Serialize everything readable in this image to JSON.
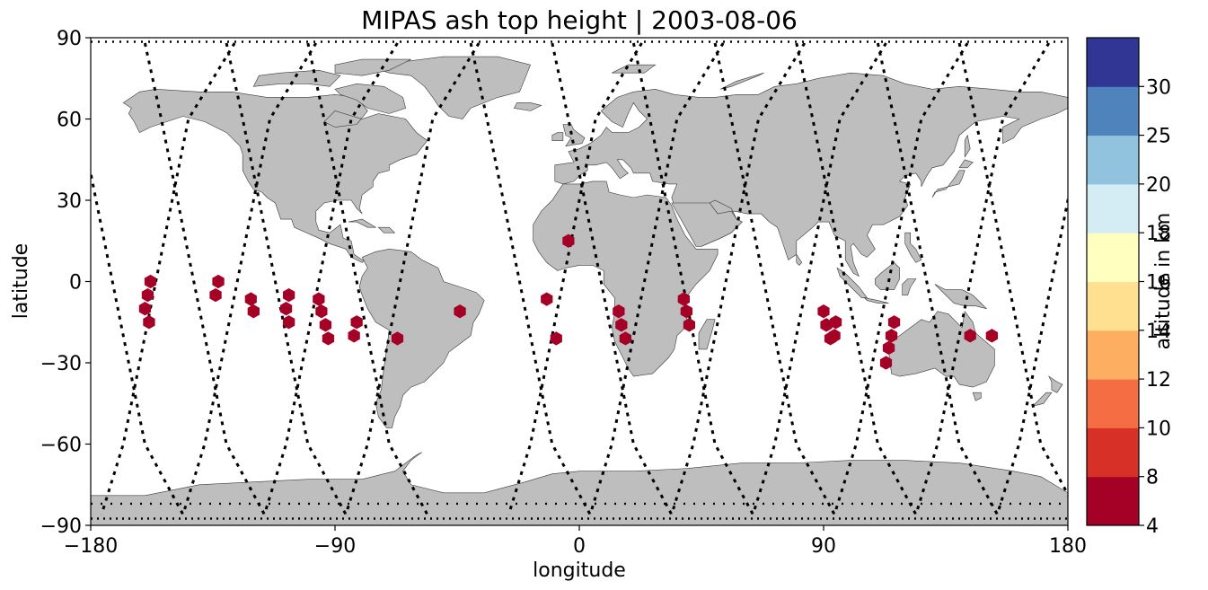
{
  "chart_data": {
    "type": "scatter",
    "title": "MIPAS ash top height | 2003-08-06",
    "xlabel": "longitude",
    "ylabel": "latitude",
    "xlim": [
      -180,
      180
    ],
    "ylim": [
      -90,
      90
    ],
    "x_ticks": [
      -180,
      -90,
      0,
      90,
      180
    ],
    "y_ticks": [
      -90,
      -60,
      -30,
      0,
      30,
      60,
      90
    ],
    "x_tick_labels": [
      "−180",
      "−90",
      "0",
      "90",
      "180"
    ],
    "y_tick_labels": [
      "−90",
      "−60",
      "−30",
      "0",
      "30",
      "60",
      "90"
    ],
    "background": "world map with grey land masses and dotted satellite ground tracks",
    "land_color": "#bebebe",
    "track_color": "#000000",
    "marker": "hexagon",
    "marker_color": "#a50026",
    "points": [
      {
        "lon": -158,
        "lat": 0,
        "alt": 6
      },
      {
        "lon": -159,
        "lat": -5,
        "alt": 6
      },
      {
        "lon": -160,
        "lat": -10,
        "alt": 6
      },
      {
        "lon": -158.5,
        "lat": -15,
        "alt": 6
      },
      {
        "lon": -133,
        "lat": 0,
        "alt": 6
      },
      {
        "lon": -134,
        "lat": -5,
        "alt": 6
      },
      {
        "lon": -121,
        "lat": -6.5,
        "alt": 6
      },
      {
        "lon": -120,
        "lat": -11,
        "alt": 6
      },
      {
        "lon": -107,
        "lat": -5,
        "alt": 6
      },
      {
        "lon": -108,
        "lat": -10,
        "alt": 6
      },
      {
        "lon": -107,
        "lat": -15,
        "alt": 6
      },
      {
        "lon": -96,
        "lat": -6.5,
        "alt": 6
      },
      {
        "lon": -95,
        "lat": -11,
        "alt": 6
      },
      {
        "lon": -93.5,
        "lat": -16,
        "alt": 6
      },
      {
        "lon": -92.5,
        "lat": -21,
        "alt": 6
      },
      {
        "lon": -82,
        "lat": -15,
        "alt": 6
      },
      {
        "lon": -83,
        "lat": -20,
        "alt": 6
      },
      {
        "lon": -67,
        "lat": -21,
        "alt": 6
      },
      {
        "lon": -44,
        "lat": -11,
        "alt": 6
      },
      {
        "lon": -12,
        "lat": -6.5,
        "alt": 6
      },
      {
        "lon": -8.5,
        "lat": -21,
        "alt": 6
      },
      {
        "lon": -4,
        "lat": 15,
        "alt": 6
      },
      {
        "lon": 14.5,
        "lat": -11,
        "alt": 6
      },
      {
        "lon": 15.5,
        "lat": -16,
        "alt": 6
      },
      {
        "lon": 17,
        "lat": -21,
        "alt": 6
      },
      {
        "lon": 38.5,
        "lat": -6.5,
        "alt": 6
      },
      {
        "lon": 39.5,
        "lat": -11,
        "alt": 6
      },
      {
        "lon": 40.5,
        "lat": -16,
        "alt": 6
      },
      {
        "lon": 90,
        "lat": -11,
        "alt": 6
      },
      {
        "lon": 91,
        "lat": -16,
        "alt": 6
      },
      {
        "lon": 92.5,
        "lat": -21,
        "alt": 6
      },
      {
        "lon": 94,
        "lat": -20,
        "alt": 6
      },
      {
        "lon": 94.5,
        "lat": -15,
        "alt": 6
      },
      {
        "lon": 116,
        "lat": -15,
        "alt": 6
      },
      {
        "lon": 115,
        "lat": -20,
        "alt": 6
      },
      {
        "lon": 114,
        "lat": -24.5,
        "alt": 6
      },
      {
        "lon": 113,
        "lat": -30,
        "alt": 6
      },
      {
        "lon": 144,
        "lat": -20,
        "alt": 6
      },
      {
        "lon": 152,
        "lat": -20,
        "alt": 6
      }
    ],
    "tracks": [
      {
        "nodes": [
          [
            -190,
            88
          ],
          [
            -184,
            60
          ],
          [
            -178,
            30
          ],
          [
            -172,
            0
          ],
          [
            -166,
            -30
          ],
          [
            -160,
            -60
          ],
          [
            -146,
            -86
          ]
        ]
      },
      {
        "nodes": [
          [
            -127,
            88
          ],
          [
            -144,
            60
          ],
          [
            -150,
            30
          ],
          [
            -156,
            0
          ],
          [
            -162,
            -30
          ],
          [
            -168,
            -60
          ],
          [
            -176,
            -86
          ]
        ]
      },
      {
        "nodes": [
          [
            -160,
            88
          ],
          [
            -154,
            60
          ],
          [
            -148,
            30
          ],
          [
            -142,
            0
          ],
          [
            -136,
            -30
          ],
          [
            -130,
            -60
          ],
          [
            -116,
            -86
          ]
        ]
      },
      {
        "nodes": [
          [
            -97,
            88
          ],
          [
            -114,
            60
          ],
          [
            -120,
            30
          ],
          [
            -126,
            0
          ],
          [
            -132,
            -30
          ],
          [
            -138,
            -60
          ],
          [
            -146,
            -86
          ]
        ]
      },
      {
        "nodes": [
          [
            -130,
            88
          ],
          [
            -124,
            60
          ],
          [
            -118,
            30
          ],
          [
            -112,
            0
          ],
          [
            -106,
            -30
          ],
          [
            -100,
            -60
          ],
          [
            -86,
            -86
          ]
        ]
      },
      {
        "nodes": [
          [
            -67,
            88
          ],
          [
            -84,
            60
          ],
          [
            -90,
            30
          ],
          [
            -96,
            0
          ],
          [
            -102,
            -30
          ],
          [
            -108,
            -60
          ],
          [
            -116,
            -86
          ]
        ]
      },
      {
        "nodes": [
          [
            -100,
            88
          ],
          [
            -94,
            60
          ],
          [
            -88,
            30
          ],
          [
            -82,
            0
          ],
          [
            -76,
            -30
          ],
          [
            -70,
            -60
          ],
          [
            -56,
            -86
          ]
        ]
      },
      {
        "nodes": [
          [
            -37,
            88
          ],
          [
            -54,
            60
          ],
          [
            -60,
            30
          ],
          [
            -66,
            0
          ],
          [
            -72,
            -30
          ],
          [
            -78,
            -60
          ],
          [
            -86,
            -86
          ]
        ]
      },
      {
        "nodes": [
          [
            -40,
            88
          ],
          [
            -34,
            60
          ],
          [
            -28,
            30
          ],
          [
            -22,
            0
          ],
          [
            -16,
            -30
          ],
          [
            -10,
            -60
          ],
          [
            4,
            -86
          ]
        ]
      },
      {
        "nodes": [
          [
            23,
            88
          ],
          [
            6,
            60
          ],
          [
            0,
            30
          ],
          [
            -6,
            0
          ],
          [
            -12,
            -30
          ],
          [
            -18,
            -60
          ],
          [
            -26,
            -86
          ]
        ]
      },
      {
        "nodes": [
          [
            -10,
            88
          ],
          [
            -4,
            60
          ],
          [
            2,
            30
          ],
          [
            8,
            0
          ],
          [
            14,
            -30
          ],
          [
            20,
            -60
          ],
          [
            34,
            -86
          ]
        ]
      },
      {
        "nodes": [
          [
            53,
            88
          ],
          [
            36,
            60
          ],
          [
            30,
            30
          ],
          [
            24,
            0
          ],
          [
            18,
            -30
          ],
          [
            12,
            -60
          ],
          [
            4,
            -86
          ]
        ]
      },
      {
        "nodes": [
          [
            20,
            88
          ],
          [
            26,
            60
          ],
          [
            32,
            30
          ],
          [
            38,
            0
          ],
          [
            44,
            -30
          ],
          [
            50,
            -60
          ],
          [
            64,
            -86
          ]
        ]
      },
      {
        "nodes": [
          [
            83,
            88
          ],
          [
            66,
            60
          ],
          [
            60,
            30
          ],
          [
            54,
            0
          ],
          [
            48,
            -30
          ],
          [
            42,
            -60
          ],
          [
            34,
            -86
          ]
        ]
      },
      {
        "nodes": [
          [
            50,
            88
          ],
          [
            56,
            60
          ],
          [
            62,
            30
          ],
          [
            68,
            0
          ],
          [
            74,
            -30
          ],
          [
            80,
            -60
          ],
          [
            94,
            -86
          ]
        ]
      },
      {
        "nodes": [
          [
            113,
            88
          ],
          [
            96,
            60
          ],
          [
            90,
            30
          ],
          [
            84,
            0
          ],
          [
            78,
            -30
          ],
          [
            72,
            -60
          ],
          [
            64,
            -86
          ]
        ]
      },
      {
        "nodes": [
          [
            80,
            88
          ],
          [
            86,
            60
          ],
          [
            92,
            30
          ],
          [
            98,
            0
          ],
          [
            104,
            -30
          ],
          [
            110,
            -60
          ],
          [
            124,
            -86
          ]
        ]
      },
      {
        "nodes": [
          [
            143,
            88
          ],
          [
            126,
            60
          ],
          [
            120,
            30
          ],
          [
            114,
            0
          ],
          [
            108,
            -30
          ],
          [
            102,
            -60
          ],
          [
            94,
            -86
          ]
        ]
      },
      {
        "nodes": [
          [
            110,
            88
          ],
          [
            116,
            60
          ],
          [
            122,
            30
          ],
          [
            128,
            0
          ],
          [
            134,
            -30
          ],
          [
            140,
            -60
          ],
          [
            154,
            -86
          ]
        ]
      },
      {
        "nodes": [
          [
            173,
            88
          ],
          [
            156,
            60
          ],
          [
            150,
            30
          ],
          [
            144,
            0
          ],
          [
            138,
            -30
          ],
          [
            132,
            -60
          ],
          [
            124,
            -86
          ]
        ]
      },
      {
        "nodes": [
          [
            140,
            88
          ],
          [
            146,
            60
          ],
          [
            152,
            30
          ],
          [
            158,
            0
          ],
          [
            164,
            -30
          ],
          [
            170,
            -60
          ],
          [
            184,
            -86
          ]
        ]
      },
      {
        "nodes": [
          [
            203,
            88
          ],
          [
            186,
            60
          ],
          [
            180,
            30
          ],
          [
            174,
            0
          ],
          [
            168,
            -30
          ],
          [
            162,
            -60
          ],
          [
            154,
            -86
          ]
        ]
      }
    ],
    "colorbar": {
      "label": "altitude in km",
      "ticks": [
        4,
        8,
        10,
        12,
        14,
        16,
        18,
        20,
        25,
        30
      ],
      "colors": [
        "#a50026",
        "#d73027",
        "#f46d43",
        "#fdae61",
        "#fee090",
        "#ffffbf",
        "#d4ecf3",
        "#91c2de",
        "#4f83bb",
        "#313695"
      ]
    }
  }
}
